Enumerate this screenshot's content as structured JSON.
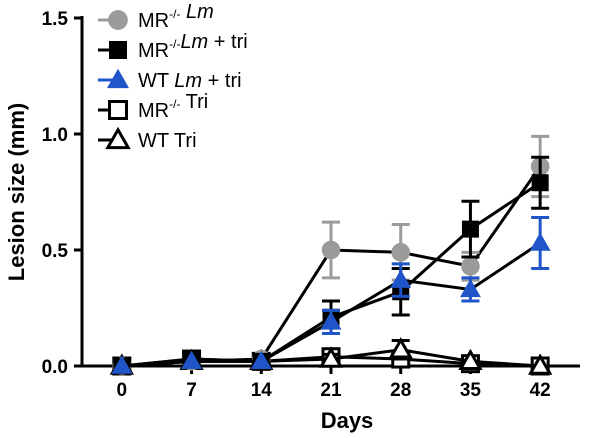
{
  "chart_data": {
    "type": "line",
    "xlabel": "Days",
    "ylabel": "Lesion size (mm)",
    "x": [
      0,
      7,
      14,
      21,
      28,
      35,
      42
    ],
    "xlim": [
      -4,
      46
    ],
    "ylim": [
      0,
      1.5
    ],
    "yticks": [
      "0.0",
      "0.5",
      "1.0",
      "1.5"
    ],
    "xticks": [
      "0",
      "7",
      "14",
      "21",
      "28",
      "35",
      "42"
    ],
    "legend_position": "top-left",
    "series": [
      {
        "name": "MR-/- Lm",
        "label_parts": [
          {
            "t": "MR",
            "s": ""
          },
          {
            "t": "-/-",
            "s": "sup"
          },
          {
            "t": " ",
            "s": ""
          },
          {
            "t": "Lm",
            "s": "it"
          }
        ],
        "color": "#9b9b9b",
        "marker": "circle",
        "filled": true,
        "values": [
          0.0,
          0.02,
          0.03,
          0.5,
          0.49,
          0.43,
          0.86
        ],
        "errors": [
          0.01,
          0.01,
          0.01,
          0.12,
          0.12,
          0.06,
          0.13
        ]
      },
      {
        "name": "MR-/-Lm + tri",
        "label_parts": [
          {
            "t": "MR",
            "s": ""
          },
          {
            "t": "-/-",
            "s": "sup"
          },
          {
            "t": "Lm",
            "s": "it"
          },
          {
            "t": " + tri",
            "s": ""
          }
        ],
        "color": "#000000",
        "marker": "square",
        "filled": true,
        "values": [
          0.0,
          0.03,
          0.02,
          0.21,
          0.32,
          0.59,
          0.79
        ],
        "errors": [
          0.01,
          0.01,
          0.01,
          0.07,
          0.1,
          0.12,
          0.11
        ]
      },
      {
        "name": "WT Lm + tri",
        "label_parts": [
          {
            "t": "WT ",
            "s": ""
          },
          {
            "t": "Lm",
            "s": "it"
          },
          {
            "t": " + tri",
            "s": ""
          }
        ],
        "color": "#1f55c8",
        "marker": "triangle",
        "filled": true,
        "values": [
          0.0,
          0.02,
          0.02,
          0.19,
          0.37,
          0.33,
          0.53
        ],
        "errors": [
          0.01,
          0.01,
          0.01,
          0.05,
          0.07,
          0.05,
          0.11
        ]
      },
      {
        "name": "MR-/- Tri",
        "label_parts": [
          {
            "t": "MR",
            "s": ""
          },
          {
            "t": "-/-",
            "s": "sup"
          },
          {
            "t": " Tri",
            "s": ""
          }
        ],
        "color": "#000000",
        "marker": "square",
        "filled": false,
        "values": [
          0.0,
          0.03,
          0.02,
          0.04,
          0.03,
          0.01,
          0.0
        ],
        "errors": [
          0.01,
          0.01,
          0.01,
          0.02,
          0.02,
          0.01,
          0.01
        ]
      },
      {
        "name": "WT Tri",
        "label_parts": [
          {
            "t": "WT Tri",
            "s": ""
          }
        ],
        "color": "#000000",
        "marker": "triangle",
        "filled": false,
        "values": [
          0.0,
          0.02,
          0.02,
          0.03,
          0.07,
          0.02,
          0.0
        ],
        "errors": [
          0.01,
          0.01,
          0.01,
          0.02,
          0.04,
          0.01,
          0.01
        ]
      }
    ]
  }
}
